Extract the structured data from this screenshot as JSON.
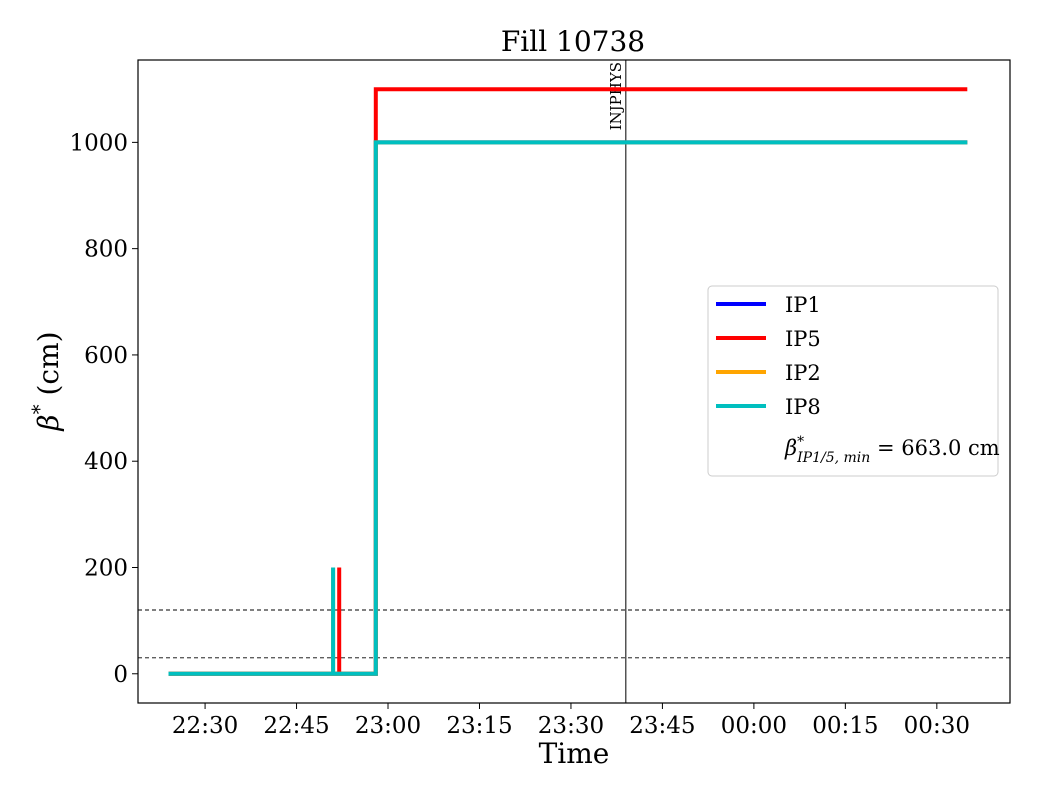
{
  "chart_data": {
    "type": "line",
    "title": "Fill 10738",
    "xlabel": "Time",
    "ylabel": "β* (cm)",
    "x_ticks": [
      "22:30",
      "22:45",
      "23:00",
      "23:15",
      "23:30",
      "23:45",
      "00:00",
      "00:15",
      "00:30"
    ],
    "y_ticks": [
      0,
      200,
      400,
      600,
      800,
      1000
    ],
    "xlim": [
      "22:19",
      "00:42"
    ],
    "ylim": [
      -55,
      1155
    ],
    "grid": false,
    "legend_position": "center-right",
    "series": [
      {
        "name": "IP1",
        "color": "#0000ff",
        "points": [
          [
            "22:24",
            0
          ],
          [
            "22:58",
            0
          ],
          [
            "22:58",
            663
          ],
          [
            "22:58",
            1000
          ],
          [
            "00:35",
            1000
          ]
        ]
      },
      {
        "name": "IP5",
        "color": "#ff0000",
        "points": [
          [
            "22:24",
            0
          ],
          [
            "22:52",
            0
          ],
          [
            "22:52",
            200
          ],
          [
            "22:52",
            0
          ],
          [
            "22:58",
            0
          ],
          [
            "22:58",
            1100
          ],
          [
            "00:35",
            1100
          ]
        ]
      },
      {
        "name": "IP2",
        "color": "#ffa500",
        "points": [
          [
            "22:24",
            0
          ],
          [
            "22:51",
            0
          ],
          [
            "22:51",
            200
          ],
          [
            "22:51",
            0
          ],
          [
            "22:58",
            0
          ],
          [
            "22:58",
            1000
          ],
          [
            "00:35",
            1000
          ]
        ]
      },
      {
        "name": "IP8",
        "color": "#00bfbf",
        "points": [
          [
            "22:24",
            0
          ],
          [
            "22:51",
            0
          ],
          [
            "22:51",
            200
          ],
          [
            "22:51",
            0
          ],
          [
            "22:58",
            0
          ],
          [
            "22:58",
            1000
          ],
          [
            "00:35",
            1000
          ]
        ]
      }
    ],
    "hlines": [
      {
        "y": 30,
        "style": "dashed"
      },
      {
        "y": 120,
        "style": "dashed"
      }
    ],
    "vlines": [
      {
        "x": "23:39",
        "label": "INJPHYS"
      }
    ],
    "legend_extra": {
      "symbol": "β",
      "superscript": "*",
      "subscript": "IP1/5, min",
      "value_text": " = 663.0 cm"
    }
  }
}
